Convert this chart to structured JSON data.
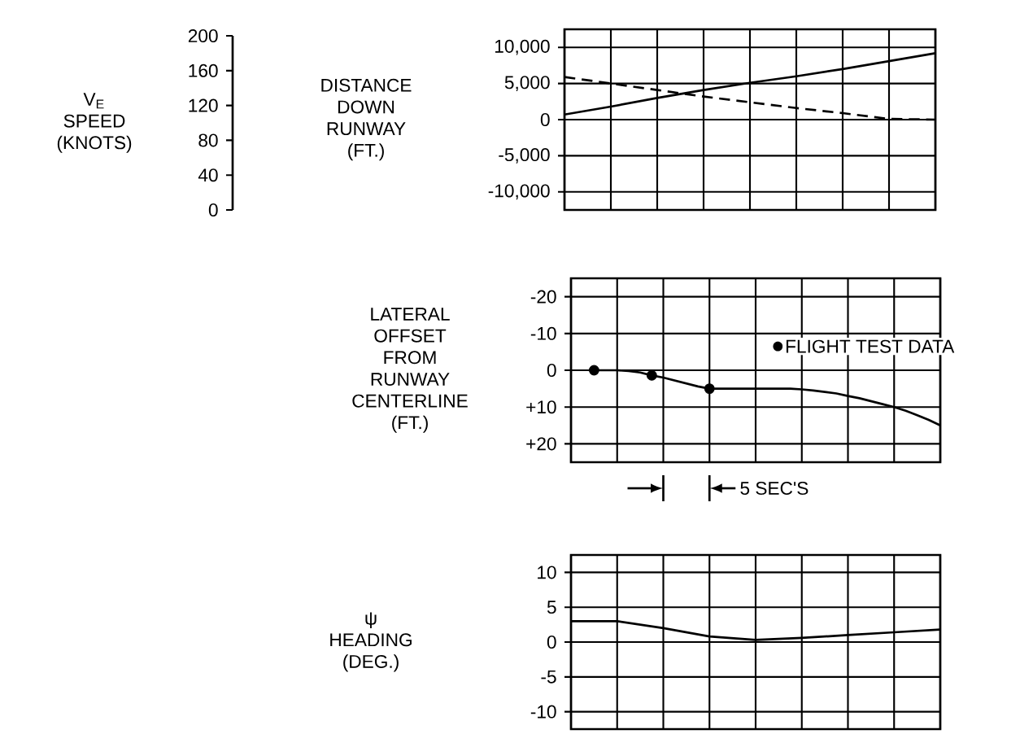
{
  "chart_data": [
    {
      "type": "line",
      "ylabel": "DISTANCE DOWN RUNWAY (FT.)",
      "y2label": "V$_{E}$ SPEED (KNOTS)",
      "y2lim": [
        0,
        200
      ],
      "y2ticks": [
        0,
        40,
        80,
        120,
        160,
        200
      ],
      "categories": [
        null,
        null,
        null,
        null,
        null,
        null,
        null,
        null,
        null
      ],
      "ylim": [
        -12500,
        12500
      ],
      "yticks": [
        {
          "value": -10000,
          "label": "-10,000"
        },
        {
          "value": -5000,
          "label": "-5,000"
        },
        0,
        {
          "value": 5000,
          "label": "5,000"
        },
        {
          "value": 10000,
          "label": "10,000"
        }
      ],
      "grid": true,
      "tick_labels": "y",
      "series": [
        {
          "color": "#000000",
          "values": [
            700,
            1800,
            3000,
            4100,
            5100,
            6000,
            7000,
            8100,
            9200
          ]
        },
        {
          "color": "#000000",
          "line_style": "dashed",
          "values": [
            5900,
            5000,
            4100,
            3200,
            2400,
            1600,
            900,
            100,
            0
          ]
        }
      ]
    },
    {
      "type": "line",
      "ylabel": "LATERAL OFFSET FROM RUNWAY CENTERLINE (FT.)",
      "categories": [
        null,
        null,
        null,
        null,
        null,
        null,
        null,
        null,
        null,
        null,
        null,
        null,
        null,
        null,
        null,
        null,
        null,
        null,
        null,
        null,
        null,
        null,
        null,
        null,
        null,
        null,
        null,
        null,
        null,
        null,
        null,
        null,
        null
      ],
      "ylim": [
        25,
        -25
      ],
      "yticks": [
        -20,
        -10,
        0,
        {
          "value": 10,
          "label": "+10"
        },
        {
          "value": 20,
          "label": "+20"
        }
      ],
      "grid": true,
      "tick_labels": "y",
      "legend": "right",
      "annotations": [
        "5 SEC'S"
      ],
      "series": [
        {
          "color": "#000000",
          "values": [
            null,
            null,
            0,
            0,
            0,
            0.2,
            0.6,
            1.4,
            2,
            2.8,
            3.6,
            4.4,
            5,
            5,
            5,
            5,
            5,
            5,
            5,
            5,
            5.2,
            5.5,
            5.9,
            6.3,
            7,
            7.6,
            8.4,
            9.2,
            10,
            11,
            12.2,
            13.5,
            15
          ]
        },
        {
          "type": "scatter",
          "name": "FLIGHT TEST DATA",
          "color": "#000000",
          "marker": "circle",
          "values": [
            null,
            null,
            0,
            null,
            null,
            null,
            null,
            1.4,
            null,
            null,
            null,
            null,
            5,
            null,
            null,
            null,
            null,
            null,
            null,
            null,
            null,
            null,
            null,
            null,
            null,
            null,
            null,
            null,
            null,
            null,
            null,
            null,
            null
          ]
        }
      ]
    },
    {
      "type": "line",
      "ylabel": "ψ HEADING (DEG.)",
      "categories": [
        null,
        null,
        null,
        null,
        null,
        null,
        null,
        null,
        null
      ],
      "ylim": [
        -12.5,
        12.5
      ],
      "yticks": [
        -10,
        -5,
        0,
        5,
        10
      ],
      "grid": true,
      "tick_labels": "y",
      "series": [
        {
          "color": "#000000",
          "values": [
            3,
            3,
            2,
            0.8,
            0.3,
            0.6,
            1,
            1.4,
            1.8
          ]
        }
      ]
    }
  ]
}
